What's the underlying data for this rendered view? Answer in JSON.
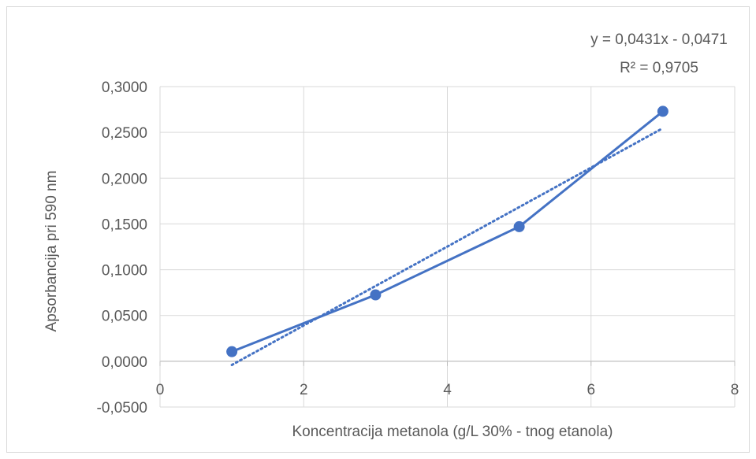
{
  "chart_data": {
    "type": "scatter",
    "xlabel": "Koncentracija metanola (g/L 30% - tnog etanola)",
    "ylabel": "Apsorbancija pri 590 nm",
    "xlim": [
      0,
      8
    ],
    "ylim": [
      -0.05,
      0.3
    ],
    "x_ticks": [
      0,
      2,
      4,
      6,
      8
    ],
    "x_tick_labels": [
      "0",
      "2",
      "4",
      "6",
      "8"
    ],
    "y_ticks": [
      -0.05,
      0,
      0.05,
      0.1,
      0.15,
      0.2,
      0.25,
      0.3
    ],
    "y_tick_labels": [
      "-0,0500",
      "0,0000",
      "0,0500",
      "0,1000",
      "0,1500",
      "0,2000",
      "0,2500",
      "0,3000"
    ],
    "grid": true,
    "series": [
      {
        "x": [
          1,
          3,
          5,
          7
        ],
        "y": [
          0.0105,
          0.0725,
          0.147,
          0.273
        ],
        "color": "#4472c4",
        "style": "line-with-markers"
      }
    ],
    "trendline": {
      "type": "linear",
      "slope": 0.0431,
      "intercept": -0.0471,
      "x_range": [
        1,
        7
      ],
      "color": "#4472c4",
      "style": "dotted",
      "equation_label": "y = 0,0431x - 0,0471",
      "r2_label": "R² = 0,9705"
    }
  }
}
